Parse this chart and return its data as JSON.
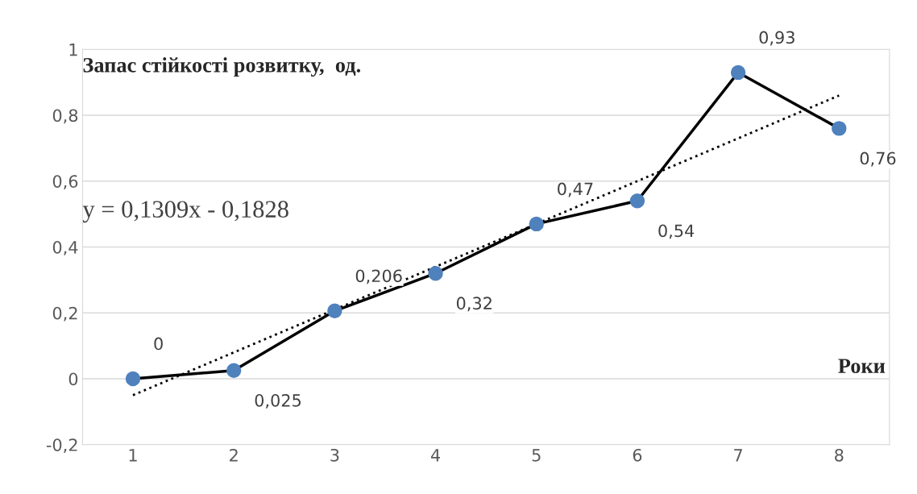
{
  "chart_data": {
    "type": "line",
    "title": "Запас стійкості розвитку,  од.",
    "xlabel": "Роки",
    "categories": [
      "1",
      "2",
      "3",
      "4",
      "5",
      "6",
      "7",
      "8"
    ],
    "series": [
      {
        "color": "#000000",
        "colors": [
          "#4f81bd",
          "#4f81bd",
          "#4f81bd",
          "#4f81bd",
          "#4f81bd",
          "#4f81bd",
          "#4f81bd",
          "#4f81bd"
        ],
        "marker": "circle",
        "line_style": "solid",
        "values": [
          0,
          0.025,
          0.206,
          0.32,
          0.47,
          0.54,
          0.93,
          0.76
        ],
        "value_labels": [
          "0",
          "0,025",
          "0,206",
          "0,32",
          "0,47",
          "0,54",
          "0,93",
          "0,76"
        ]
      },
      {
        "type": "line",
        "color": "#000000",
        "line_style": "dotted",
        "marker": "none",
        "x": [
          "1",
          "8"
        ],
        "values": [
          -0.05,
          0.86
        ]
      }
    ],
    "annotations": [
      "y = 0,1309x - 0,1828"
    ],
    "ylim": [
      -0.2,
      1
    ],
    "yticks": [
      {
        "value": -0.2,
        "label": "-0,2"
      },
      0,
      {
        "value": 0.2,
        "label": "0,2"
      },
      {
        "value": 0.4,
        "label": "0,4"
      },
      {
        "value": 0.6,
        "label": "0,6"
      },
      {
        "value": 0.8,
        "label": "0,8"
      },
      1
    ],
    "grid": "y",
    "legend": false
  }
}
